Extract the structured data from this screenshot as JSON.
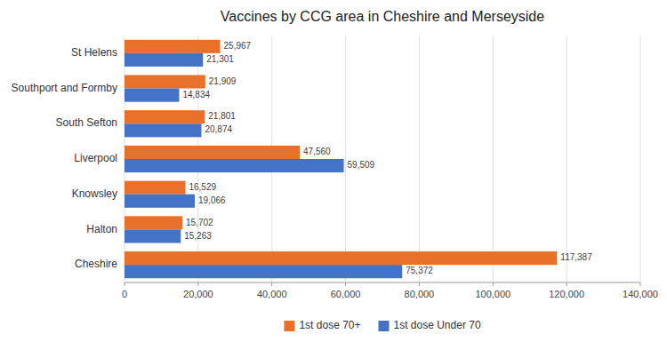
{
  "chart_data": {
    "type": "bar",
    "orientation": "horizontal",
    "title": "Vaccines by CCG area in Cheshire and Merseyside",
    "categories": [
      "Cheshire",
      "Halton",
      "Knowsley",
      "Liverpool",
      "South Sefton",
      "Southport and Formby",
      "St Helens"
    ],
    "series": [
      {
        "name": "1st dose 70+",
        "color": "#E87028",
        "values": [
          117387,
          15702,
          16529,
          47560,
          21801,
          21909,
          25967
        ],
        "value_labels": [
          "117,387",
          "15,702",
          "16,529",
          "47,560",
          "21,801",
          "21,909",
          "25,967"
        ]
      },
      {
        "name": "1st dose Under 70",
        "color": "#4472C4",
        "values": [
          75372,
          15263,
          19066,
          59509,
          20874,
          14834,
          21301
        ],
        "value_labels": [
          "75,372",
          "15,263",
          "19,066",
          "59,509",
          "20,874",
          "14,834",
          "21,301"
        ]
      }
    ],
    "xlim": [
      0,
      140000
    ],
    "xticks": [
      0,
      {
        "value": 20000,
        "label": "20,000"
      },
      {
        "value": 40000,
        "label": "40,000"
      },
      {
        "value": 60000,
        "label": "60,000"
      },
      {
        "value": 80000,
        "label": "80,000"
      },
      {
        "value": 100000,
        "label": "100,000"
      },
      {
        "value": 120000,
        "label": "120,000"
      },
      {
        "value": 140000,
        "label": "140,000"
      }
    ],
    "grid": true,
    "legend": "bottom",
    "data_labels": true
  }
}
